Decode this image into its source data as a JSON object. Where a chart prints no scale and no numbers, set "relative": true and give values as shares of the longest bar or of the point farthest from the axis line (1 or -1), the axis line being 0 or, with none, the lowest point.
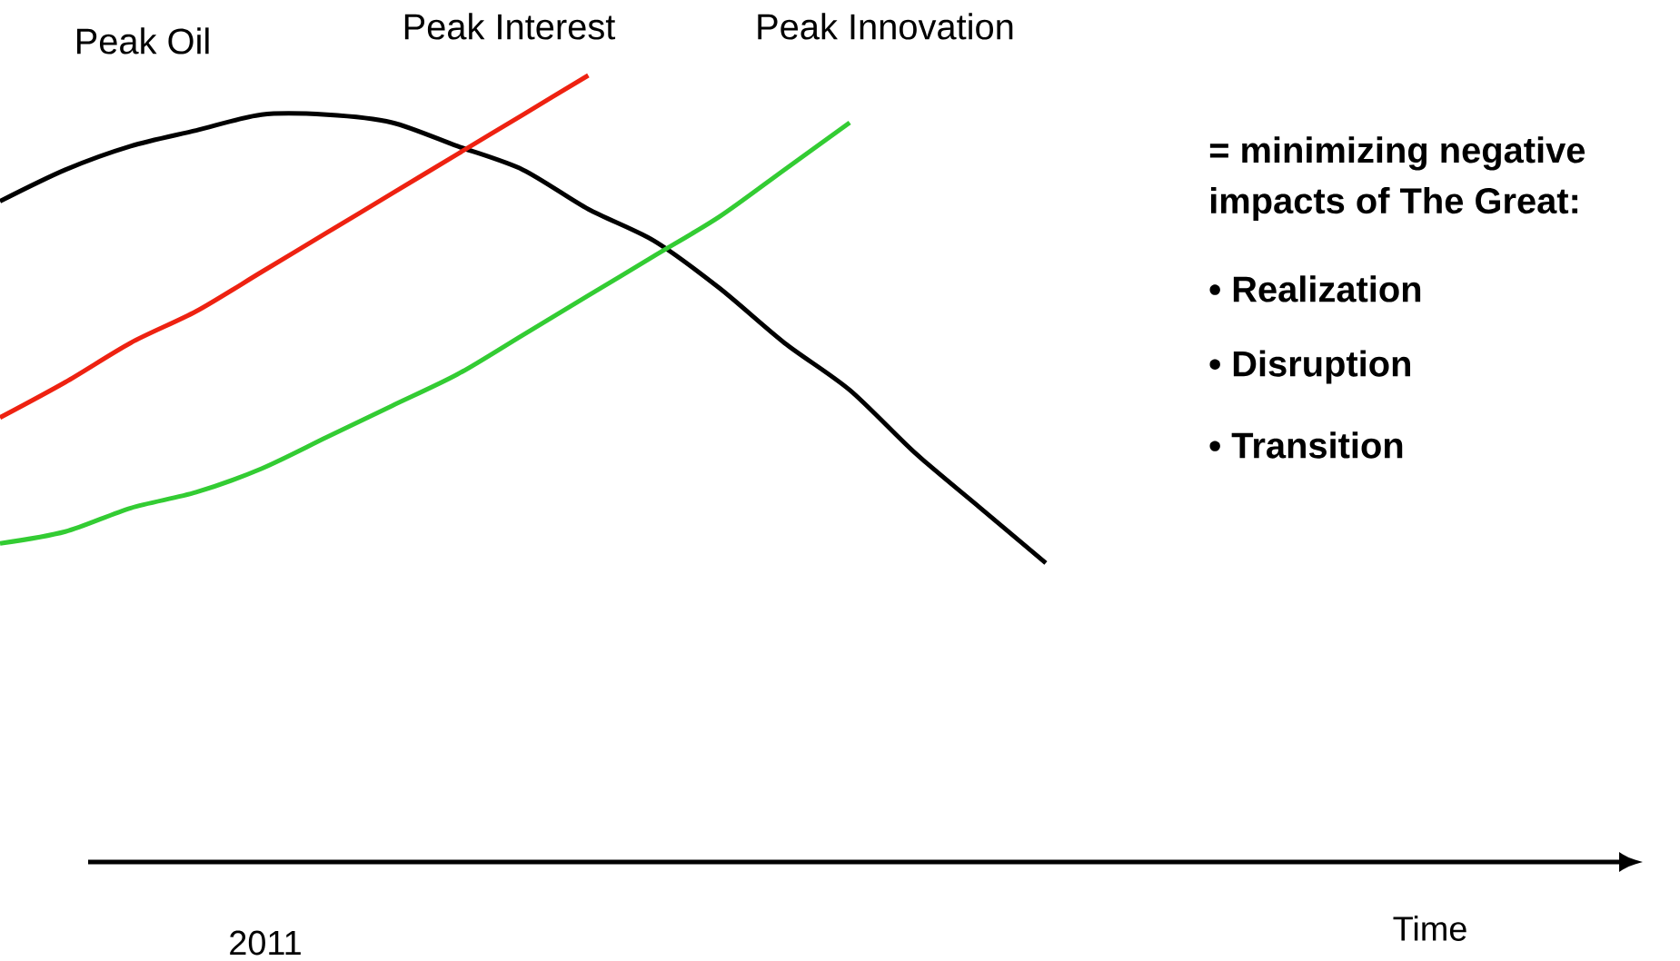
{
  "chart_data": {
    "type": "line",
    "relative": true,
    "categories": [
      null,
      null,
      null,
      null,
      null,
      null,
      null,
      null,
      null,
      null,
      null,
      null,
      null,
      null,
      null,
      null,
      null
    ],
    "series": [
      {
        "name": "Peak Oil",
        "color": "#000000",
        "values": [
          0.84,
          0.88,
          0.91,
          0.93,
          0.95,
          0.95,
          0.94,
          0.91,
          0.88,
          0.83,
          0.79,
          0.73,
          0.66,
          0.6,
          0.52,
          0.45,
          0.38
        ]
      },
      {
        "name": "Peak Interest",
        "color": "#ee2211",
        "values": [
          0.565,
          0.61,
          0.66,
          0.7,
          0.75,
          0.8,
          0.85,
          0.9,
          0.95,
          1.0,
          null,
          null,
          null,
          null,
          null,
          null,
          null
        ]
      },
      {
        "name": "Peak Innovation",
        "color": "#33cc33",
        "values": [
          0.405,
          0.42,
          0.45,
          0.47,
          0.5,
          0.54,
          0.58,
          0.62,
          0.67,
          0.72,
          0.77,
          0.82,
          0.88,
          0.94,
          null,
          null,
          null
        ]
      }
    ],
    "annotations": [
      "2011",
      "Time",
      "= minimizing negative impacts of The Great:",
      "• Realization",
      "• Disruption",
      "• Transition"
    ]
  }
}
